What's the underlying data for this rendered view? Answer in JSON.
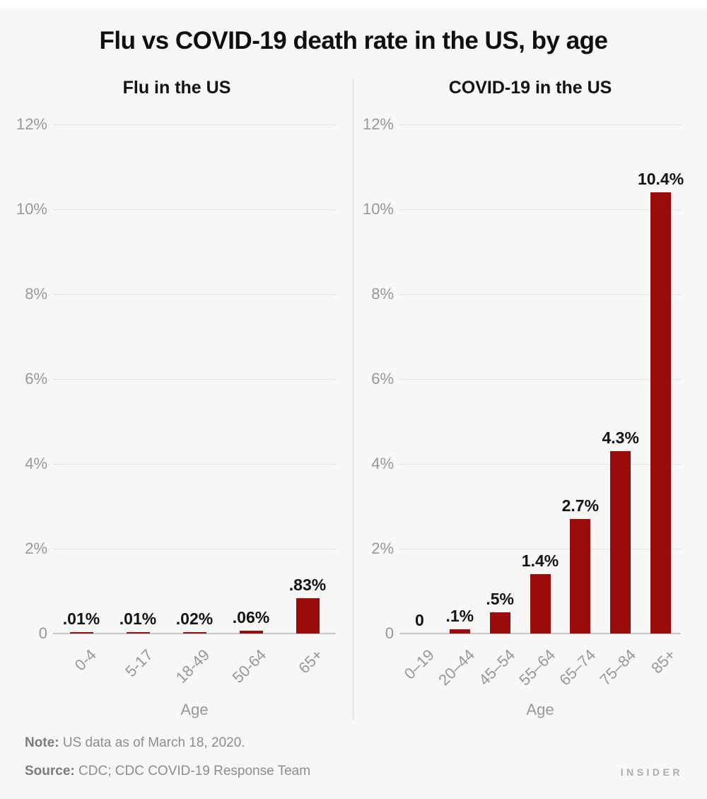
{
  "header": {
    "title": "Flu vs COVID-19 death rate in the US, by age"
  },
  "chart_data": [
    {
      "type": "bar",
      "title": "Flu in the US",
      "categories": [
        "0-4",
        "5-17",
        "18-49",
        "50-64",
        "65+"
      ],
      "values": [
        0.01,
        0.01,
        0.02,
        0.06,
        0.83
      ],
      "value_labels": [
        ".01%",
        ".01%",
        ".02%",
        ".06%",
        ".83%"
      ],
      "xlabel": "Age",
      "ylabel": "",
      "yticks": [
        0,
        2,
        4,
        6,
        8,
        10,
        12
      ],
      "ytick_labels": [
        "0",
        "2%",
        "4%",
        "6%",
        "8%",
        "10%",
        "12%"
      ],
      "ylim": [
        0,
        12
      ],
      "grid": true,
      "legend": false
    },
    {
      "type": "bar",
      "title": "COVID-19 in the US",
      "categories": [
        "0–19",
        "20–44",
        "45–54",
        "55–64",
        "65–74",
        "75–84",
        "85+"
      ],
      "values": [
        0,
        0.1,
        0.5,
        1.4,
        2.7,
        4.3,
        10.4
      ],
      "value_labels": [
        "0",
        ".1%",
        ".5%",
        "1.4%",
        "2.7%",
        "4.3%",
        "10.4%"
      ],
      "xlabel": "Age",
      "ylabel": "",
      "yticks": [
        0,
        2,
        4,
        6,
        8,
        10,
        12
      ],
      "ytick_labels": [
        "0",
        "2%",
        "4%",
        "6%",
        "8%",
        "10%",
        "12%"
      ],
      "ylim": [
        0,
        12
      ],
      "grid": true,
      "legend": false
    }
  ],
  "footer": {
    "note_label": "Note:",
    "note_text": "US data as of March 18, 2020.",
    "source_label": "Source:",
    "source_text": "CDC; CDC COVID-19 Response Team",
    "brand": "INSIDER"
  },
  "colors": {
    "bar": "#9C0B0C",
    "background": "#F8F7F5",
    "gridline": "#E7E6E4",
    "axis_line": "#C9C8C6",
    "tick_label_gray": "#98989B",
    "data_label_black": "#131313",
    "footnote_gray": "#8D8D8D",
    "brand_gray": "#ACACAC"
  }
}
